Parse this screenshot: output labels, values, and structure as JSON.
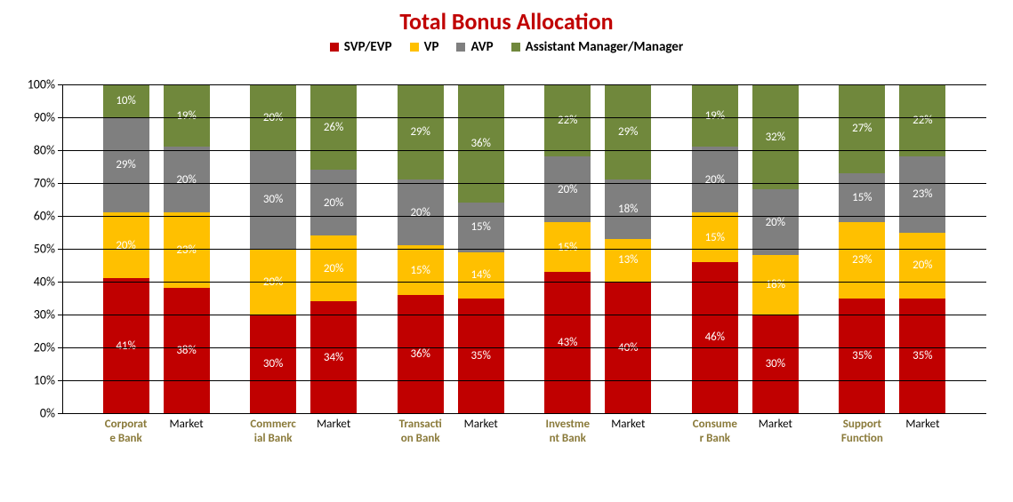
{
  "chart": {
    "type": "stacked-bar-100",
    "title": "Total Bonus Allocation",
    "title_color": "#c00000",
    "title_fontsize": 26,
    "background_color": "#ffffff",
    "grid_color": "#000000",
    "ylim": [
      0,
      100
    ],
    "ytick_step": 10,
    "y_suffix": "%",
    "series": [
      {
        "key": "svp",
        "label": "SVP/EVP",
        "color": "#c00000"
      },
      {
        "key": "vp",
        "label": "VP",
        "color": "#ffc000"
      },
      {
        "key": "avp",
        "label": "AVP",
        "color": "#7f7f7f"
      },
      {
        "key": "mgr",
        "label": "Assistant Manager/Manager",
        "color": "#70883c"
      }
    ],
    "groups": [
      {
        "name": "Corporate Bank",
        "bars": [
          {
            "label": "Corporate Bank",
            "svp": 41,
            "vp": 20,
            "avp": 29,
            "mgr": 10
          },
          {
            "label": "Market",
            "svp": 38,
            "vp": 23,
            "avp": 20,
            "mgr": 19
          }
        ]
      },
      {
        "name": "Commercial Bank",
        "bars": [
          {
            "label": "Commercial Bank",
            "svp": 30,
            "vp": 20,
            "avp": 30,
            "mgr": 20
          },
          {
            "label": "Market",
            "svp": 34,
            "vp": 20,
            "avp": 20,
            "mgr": 26
          }
        ]
      },
      {
        "name": "Transaction Bank",
        "bars": [
          {
            "label": "Transaction Bank",
            "svp": 36,
            "vp": 15,
            "avp": 20,
            "mgr": 29
          },
          {
            "label": "Market",
            "svp": 35,
            "vp": 14,
            "avp": 15,
            "mgr": 36
          }
        ]
      },
      {
        "name": "Investment Bank",
        "bars": [
          {
            "label": "Investment Bank",
            "svp": 43,
            "vp": 15,
            "avp": 20,
            "mgr": 22
          },
          {
            "label": "Market",
            "svp": 40,
            "vp": 13,
            "avp": 18,
            "mgr": 29
          }
        ]
      },
      {
        "name": "Consumer Bank",
        "bars": [
          {
            "label": "Consumer Bank",
            "svp": 46,
            "vp": 15,
            "avp": 20,
            "mgr": 19
          },
          {
            "label": "Market",
            "svp": 30,
            "vp": 18,
            "avp": 20,
            "mgr": 32
          }
        ]
      },
      {
        "name": "Support Function",
        "bars": [
          {
            "label": "Support Function",
            "svp": 35,
            "vp": 23,
            "avp": 15,
            "mgr": 27
          },
          {
            "label": "Market",
            "svp": 35,
            "vp": 20,
            "avp": 23,
            "mgr": 22
          }
        ]
      }
    ],
    "data_label_color": "#ffffff",
    "data_label_fontsize": 13,
    "axis_label_fontsize": 14
  }
}
